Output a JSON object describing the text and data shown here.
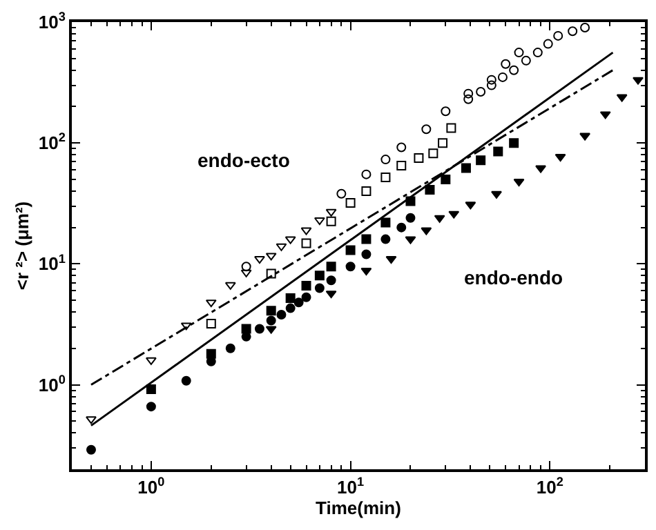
{
  "chart_data": {
    "type": "scatter",
    "xlabel": "Time(min)",
    "ylabel": "<r ²> (μm²)",
    "log": "xy",
    "xlim": [
      0.4,
      300
    ],
    "ylim": [
      0.2,
      1000
    ],
    "xticks": [
      {
        "value": 1,
        "label": "10$^{0}$"
      },
      {
        "value": 10,
        "label": "10$^{1}$"
      },
      {
        "value": 100,
        "label": "10$^{2}$"
      }
    ],
    "yticks": [
      {
        "value": 1,
        "label": "10$^{0}$"
      },
      {
        "value": 10,
        "label": "10$^{1}$"
      },
      {
        "value": 100,
        "label": "10$^{2}$"
      },
      {
        "value": 1000,
        "label": "10$^{3}$"
      }
    ],
    "annotations": [
      "endo-ecto",
      "endo-endo"
    ],
    "series": [
      {
        "color": "#000000",
        "marker": "triangle-down-open",
        "x": [
          0.5,
          1,
          1.5,
          2,
          2.5,
          3,
          3.5,
          4,
          4.5,
          5,
          6,
          7,
          8
        ],
        "values": [
          0.52,
          1.6,
          3.1,
          4.8,
          6.7,
          8.5,
          11,
          11.7,
          14,
          16,
          19,
          23,
          27
        ]
      },
      {
        "color": "#000000",
        "marker": "circle-open",
        "x": [
          3,
          9,
          12,
          15,
          18,
          24,
          30,
          39,
          51,
          60,
          70
        ],
        "values": [
          9.5,
          38,
          55,
          73,
          92,
          130,
          183,
          256,
          333,
          450,
          560
        ]
      },
      {
        "color": "#000000",
        "marker": "circle-open",
        "x": [
          39,
          45,
          51,
          58,
          66,
          76,
          87,
          98,
          110,
          130,
          150
        ],
        "values": [
          230,
          265,
          300,
          350,
          400,
          480,
          560,
          660,
          770,
          840,
          900
        ]
      },
      {
        "color": "#000000",
        "marker": "square-open",
        "x": [
          2,
          4,
          6,
          8,
          10,
          12,
          15,
          18,
          22,
          26,
          29,
          32
        ],
        "values": [
          3.2,
          8.3,
          14.8,
          22.5,
          32,
          40,
          52,
          65,
          75,
          82,
          100,
          133
        ]
      },
      {
        "color": "#000000",
        "marker": "circle",
        "x": [
          0.5,
          1,
          1.5,
          2,
          2.5,
          3,
          3.5,
          4,
          4.5,
          5,
          5.5,
          6,
          7,
          8,
          10,
          12,
          15,
          18,
          20
        ],
        "values": [
          0.29,
          0.66,
          1.08,
          1.56,
          2.0,
          2.5,
          2.9,
          3.4,
          3.8,
          4.3,
          4.8,
          5.3,
          6.3,
          7.3,
          9.5,
          12,
          16,
          20,
          24
        ]
      },
      {
        "color": "#000000",
        "marker": "square",
        "x": [
          1,
          2,
          3,
          4,
          5,
          6,
          7,
          8,
          10,
          12,
          15,
          20,
          25,
          30,
          38,
          45,
          55,
          66
        ],
        "values": [
          0.92,
          1.8,
          2.9,
          4.1,
          5.2,
          6.6,
          8,
          9.5,
          13,
          16,
          22,
          33,
          41,
          50,
          62,
          72,
          85,
          100
        ]
      },
      {
        "color": "#000000",
        "marker": "triangle-down",
        "x": [
          4,
          8,
          12,
          16,
          20,
          24,
          28,
          33,
          40,
          54,
          70,
          90,
          113,
          150,
          190,
          230,
          277
        ],
        "values": [
          2.9,
          5.7,
          8.8,
          11,
          16,
          19,
          24,
          26,
          31,
          38,
          48,
          62,
          77,
          115,
          173,
          240,
          333
        ]
      },
      {
        "type": "line",
        "color": "#000000",
        "line_style": "solid",
        "marker": "none",
        "x": [
          0.5,
          207
        ],
        "values": [
          0.46,
          560
        ]
      },
      {
        "type": "line",
        "color": "#000000",
        "line_style": "dashdot",
        "marker": "none",
        "x": [
          0.5,
          207
        ],
        "values": [
          1.0,
          400
        ]
      }
    ]
  }
}
